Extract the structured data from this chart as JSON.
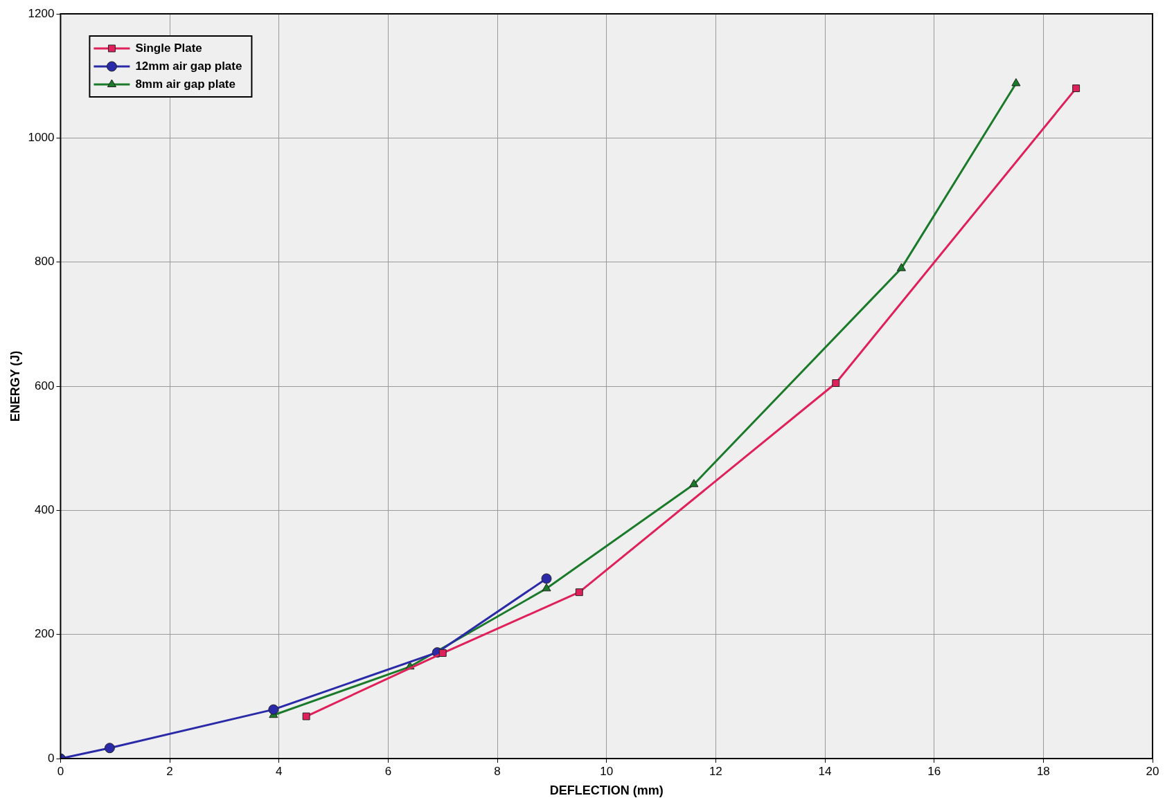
{
  "chart_data": {
    "type": "line",
    "xlabel": "DEFLECTION (mm)",
    "ylabel": "ENERGY (J)",
    "xlim": [
      0,
      20
    ],
    "xticks": [
      0,
      2,
      4,
      6,
      8,
      10,
      12,
      14,
      16,
      18,
      20
    ],
    "ylim": [
      0,
      1200
    ],
    "yticks": [
      0,
      200,
      400,
      600,
      800,
      1000,
      1200
    ],
    "grid": true,
    "legend": "top left",
    "line_style": "solid",
    "series": [
      {
        "name": "Single Plate",
        "color": "#e0205a",
        "marker": "square",
        "x": [
          4.5,
          7,
          9.5,
          14.2,
          18.6
        ],
        "values": [
          68,
          170,
          268,
          605,
          1080
        ]
      },
      {
        "name": "12mm air gap plate",
        "color": "#2a2aa8",
        "marker": "circle",
        "x": [
          0,
          0.9,
          3.9,
          6.9,
          8.9
        ],
        "values": [
          0,
          17,
          79,
          171,
          290
        ]
      },
      {
        "name": "8mm air gap plate",
        "color": "#1a7a2a",
        "marker": "triangle",
        "x": [
          3.9,
          6.4,
          8.9,
          11.6,
          15.4,
          17.5
        ],
        "values": [
          70,
          148,
          274,
          442,
          790,
          1088
        ]
      }
    ]
  }
}
